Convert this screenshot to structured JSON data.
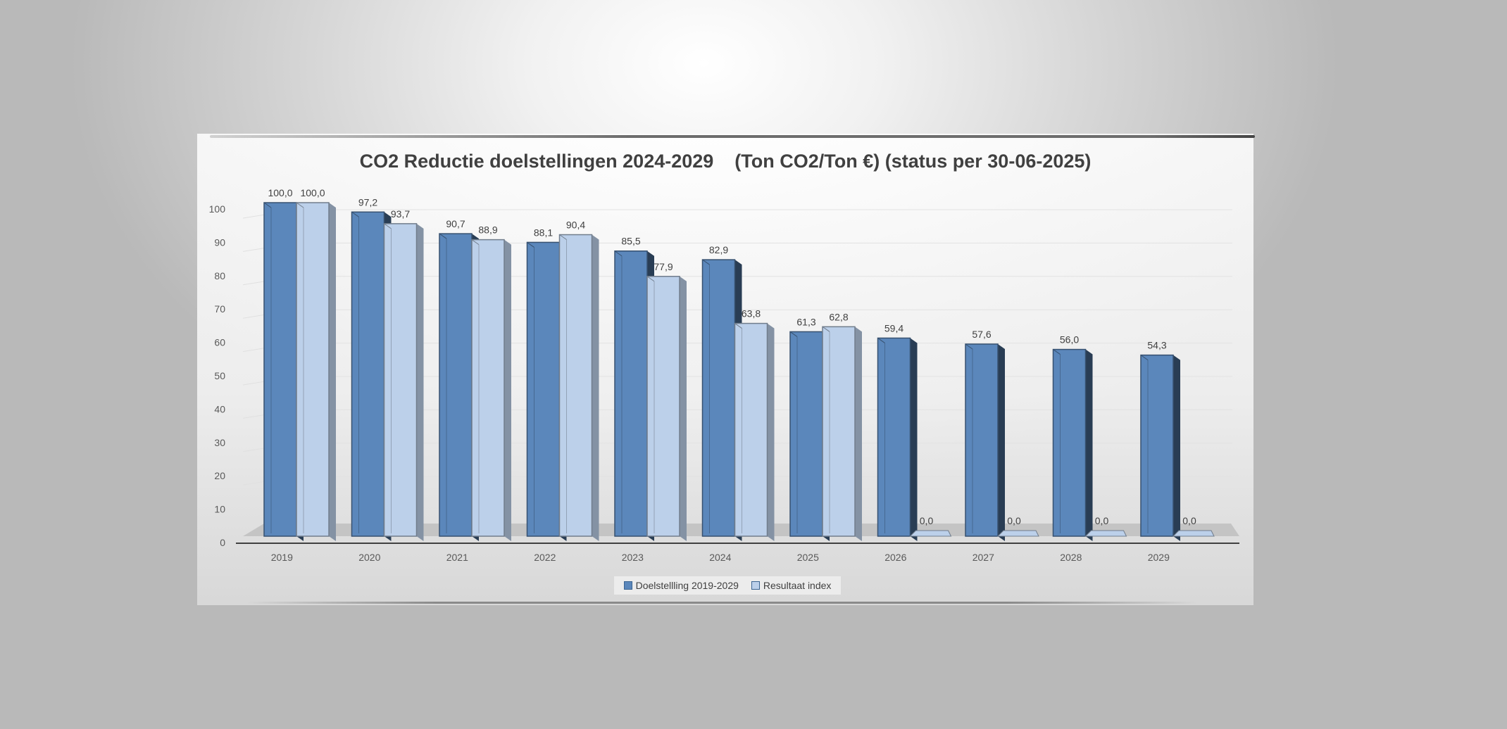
{
  "chart_data": {
    "type": "bar",
    "title": "CO2 Reductie doelstellingen 2024-2029    (Ton CO2/Ton €) (status per 30-06-2025)",
    "categories": [
      "2019",
      "2020",
      "2021",
      "2022",
      "2023",
      "2024",
      "2025",
      "2026",
      "2027",
      "2028",
      "2029"
    ],
    "series": [
      {
        "name": "Doelstellling 2019-2029",
        "values": [
          100.0,
          97.2,
          90.7,
          88.1,
          85.5,
          82.9,
          61.3,
          59.4,
          57.6,
          56.0,
          54.3
        ],
        "labels": [
          "100,0",
          "97,2",
          "90,7",
          "88,1",
          "85,5",
          "82,9",
          "61,3",
          "59,4",
          "57,6",
          "56,0",
          "54,3"
        ],
        "color": "#5b87bb"
      },
      {
        "name": "Resultaat index",
        "values": [
          100.0,
          93.7,
          88.9,
          90.4,
          77.9,
          63.8,
          62.8,
          0.0,
          0.0,
          0.0,
          0.0
        ],
        "labels": [
          "100,0",
          "93,7",
          "88,9",
          "90,4",
          "77,9",
          "63,8",
          "62,8",
          "0,0",
          "0,0",
          "0,0",
          "0,0"
        ],
        "color": "#bcd0ea"
      }
    ],
    "yticks": [
      "0",
      "10",
      "20",
      "30",
      "40",
      "50",
      "60",
      "70",
      "80",
      "90",
      "100"
    ],
    "ylim": [
      0,
      100
    ],
    "grid": true,
    "legend_position": "bottom",
    "style": "3d-column"
  }
}
